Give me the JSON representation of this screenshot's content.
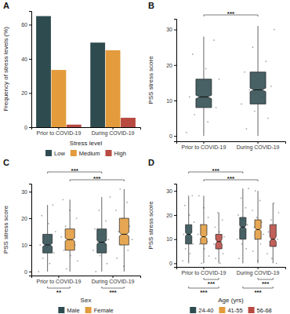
{
  "chart_data": [
    {
      "type": "bar",
      "panel_label": "A",
      "categories": [
        "Prior to COVID-19",
        "During COVID-19"
      ],
      "ylabel": "Frequency of stress levels (%)",
      "ylim": [
        0,
        68
      ],
      "yticks": [
        0,
        20,
        40,
        60
      ],
      "legend": "bottom",
      "legend_title": "Stress level",
      "series": [
        {
          "name": "Low",
          "color": "#2e4b50",
          "values": [
            65,
            49.5
          ]
        },
        {
          "name": "Medium",
          "color": "#e39b3c",
          "values": [
            33.5,
            45
          ]
        },
        {
          "name": "High",
          "color": "#b84a42",
          "values": [
            1.5,
            5.5
          ]
        }
      ]
    },
    {
      "type": "box",
      "panel_label": "B",
      "categories": [
        "Prior to COVID-19",
        "During COVID-19"
      ],
      "ylabel": "PSS stress score",
      "ylim": [
        -1.5,
        33
      ],
      "yticks": [
        0,
        10,
        20,
        30
      ],
      "series": [
        {
          "color": "#2e4b50",
          "boxes": [
            {
              "min": 0,
              "q1": 8,
              "median": 11,
              "q3": 16,
              "max": 28,
              "notch_lo": 10.5,
              "notch_hi": 11.5,
              "points": [
                1,
                4,
                6,
                8,
                9,
                11,
                12,
                14,
                16,
                19,
                23,
                27
              ]
            },
            {
              "min": 0,
              "q1": 9,
              "median": 13,
              "q3": 18,
              "max": 31,
              "notch_lo": 12.5,
              "notch_hi": 13.5,
              "points": [
                2,
                5,
                7,
                9,
                11,
                13,
                14,
                16,
                18,
                21,
                25,
                30
              ]
            }
          ]
        }
      ],
      "comparisons": [
        {
          "label": "***",
          "a": [
            0,
            0
          ],
          "b": [
            1,
            0
          ]
        }
      ]
    },
    {
      "type": "box",
      "panel_label": "C",
      "categories": [
        "Prior to COVID-19",
        "During COVID-19"
      ],
      "ylabel": "PSS stress score",
      "ylim": [
        -1.5,
        33
      ],
      "yticks": [
        0,
        10,
        20,
        30
      ],
      "legend": "bottom",
      "legend_title": "Sex",
      "series": [
        {
          "name": "Male",
          "color": "#2e4b50",
          "boxes": [
            {
              "min": 0,
              "q1": 7,
              "median": 10,
              "q3": 14,
              "max": 25,
              "notch_lo": 9.4,
              "notch_hi": 10.6,
              "points": [
                0,
                3,
                5,
                7,
                9,
                10,
                11,
                13,
                15,
                18,
                21,
                25
              ]
            },
            {
              "min": 0,
              "q1": 7,
              "median": 11,
              "q3": 16,
              "max": 28,
              "notch_lo": 10.3,
              "notch_hi": 11.7,
              "points": [
                0,
                3,
                6,
                8,
                10,
                11,
                12,
                14,
                16,
                19,
                23,
                28
              ]
            }
          ]
        },
        {
          "name": "Female",
          "color": "#e39b3c",
          "boxes": [
            {
              "min": 0,
              "q1": 8,
              "median": 12,
              "q3": 16,
              "max": 27,
              "notch_lo": 11.4,
              "notch_hi": 12.6,
              "points": [
                1,
                4,
                6,
                8,
                10,
                12,
                13,
                15,
                17,
                20,
                23,
                27
              ]
            },
            {
              "min": 0,
              "q1": 10,
              "median": 14,
              "q3": 20,
              "max": 31,
              "notch_lo": 13.3,
              "notch_hi": 14.7,
              "points": [
                2,
                5,
                8,
                10,
                12,
                14,
                15,
                17,
                20,
                23,
                26,
                31
              ]
            }
          ]
        }
      ],
      "comparisons": [
        {
          "label": "***",
          "a": [
            0,
            1
          ],
          "b": [
            1,
            1
          ]
        },
        {
          "label": "***",
          "a": [
            0,
            0
          ],
          "b": [
            1,
            0
          ]
        },
        {
          "label": "**",
          "a": [
            0,
            0
          ],
          "b": [
            0,
            1
          ]
        },
        {
          "label": "***",
          "a": [
            1,
            0
          ],
          "b": [
            1,
            1
          ]
        }
      ]
    },
    {
      "type": "box",
      "panel_label": "D",
      "categories": [
        "Prior to COVID-19",
        "During COVID-19"
      ],
      "ylabel": "PSS stress score",
      "ylim": [
        -1.5,
        33
      ],
      "yticks": [
        0,
        10,
        20,
        30
      ],
      "legend": "bottom",
      "legend_title": "Age (yrs)",
      "series": [
        {
          "name": "24-40",
          "color": "#2e4b50",
          "boxes": [
            {
              "min": 0,
              "q1": 8,
              "median": 12,
              "q3": 16,
              "max": 28,
              "notch_lo": 11.3,
              "notch_hi": 12.7,
              "points": [
                1,
                4,
                6,
                8,
                10,
                12,
                13,
                15,
                17,
                20,
                24,
                28
              ]
            },
            {
              "min": 0,
              "q1": 10,
              "median": 15,
              "q3": 19,
              "max": 31,
              "notch_lo": 14.3,
              "notch_hi": 15.7,
              "points": [
                2,
                6,
                8,
                10,
                13,
                15,
                16,
                18,
                20,
                23,
                27,
                31
              ]
            }
          ]
        },
        {
          "name": "41-55",
          "color": "#e39b3c",
          "boxes": [
            {
              "min": 0,
              "q1": 8,
              "median": 11,
              "q3": 16,
              "max": 28,
              "notch_lo": 10.3,
              "notch_hi": 11.7,
              "points": [
                0,
                3,
                6,
                8,
                9,
                11,
                12,
                14,
                16,
                19,
                23,
                28
              ]
            },
            {
              "min": 0,
              "q1": 10,
              "median": 14,
              "q3": 18,
              "max": 30,
              "notch_lo": 13.3,
              "notch_hi": 14.7,
              "points": [
                1,
                5,
                8,
                10,
                12,
                14,
                15,
                17,
                19,
                22,
                26,
                30
              ]
            }
          ]
        },
        {
          "name": "56-68",
          "color": "#b84a42",
          "boxes": [
            {
              "min": 0,
              "q1": 6,
              "median": 9,
              "q3": 12,
              "max": 21,
              "notch_lo": 8,
              "notch_hi": 10,
              "points": [
                0,
                2,
                4,
                6,
                8,
                9,
                10,
                11,
                13,
                15,
                18,
                21
              ]
            },
            {
              "min": 0,
              "q1": 7,
              "median": 10,
              "q3": 16,
              "max": 25,
              "notch_lo": 9,
              "notch_hi": 11,
              "points": [
                0,
                2,
                4,
                7,
                9,
                10,
                11,
                13,
                16,
                18,
                21,
                25
              ]
            }
          ]
        }
      ],
      "comparisons": [
        {
          "label": "***",
          "a": [
            0,
            1
          ],
          "b": [
            1,
            1
          ]
        },
        {
          "label": "***",
          "a": [
            0,
            0
          ],
          "b": [
            1,
            0
          ]
        },
        {
          "label": "***",
          "a": [
            0,
            1
          ],
          "b": [
            0,
            2
          ]
        },
        {
          "label": "***",
          "a": [
            0,
            0
          ],
          "b": [
            0,
            2
          ]
        },
        {
          "label": "***",
          "a": [
            1,
            1
          ],
          "b": [
            1,
            2
          ]
        },
        {
          "label": "***",
          "a": [
            1,
            0
          ],
          "b": [
            1,
            2
          ]
        }
      ]
    }
  ]
}
